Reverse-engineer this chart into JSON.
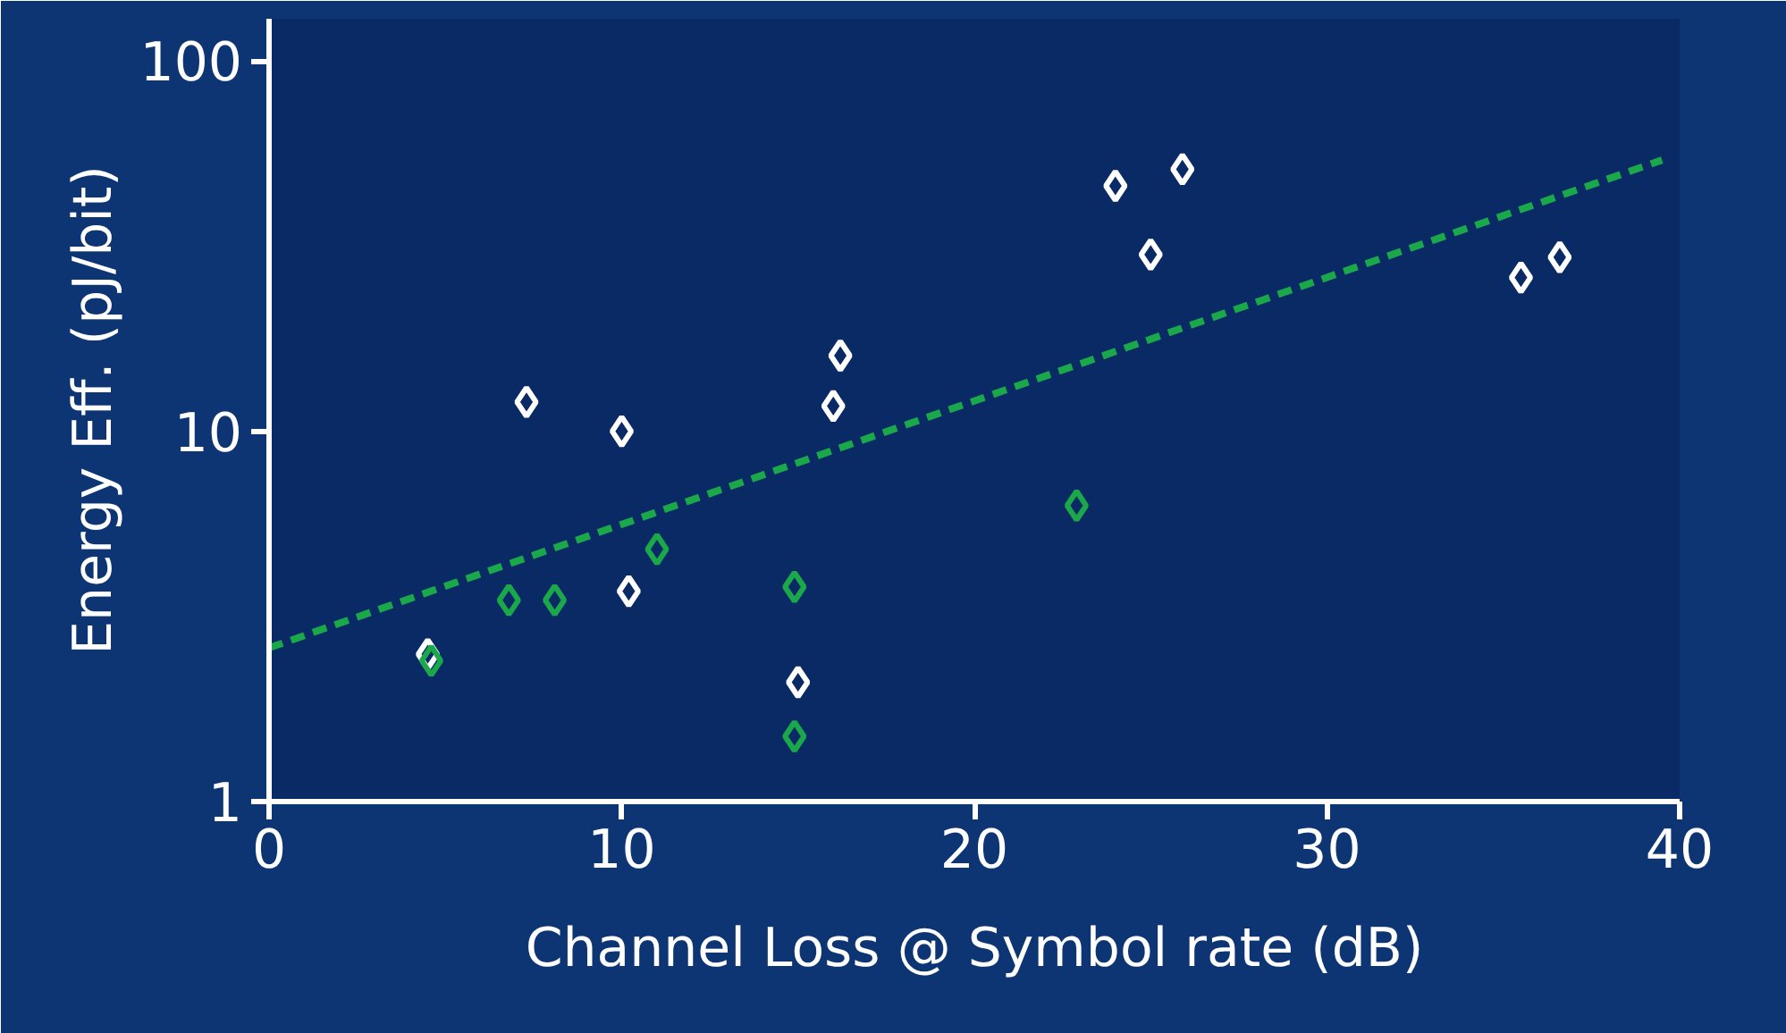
{
  "chart_data": {
    "type": "scatter",
    "xlabel": "Channel Loss @ Symbol rate (dB)",
    "ylabel": "Energy Eff. (pJ/bit)",
    "log": "y",
    "xlim": [
      0,
      40
    ],
    "ylim": [
      1,
      130
    ],
    "xticks": [
      0,
      10,
      20,
      30,
      40
    ],
    "yticks": [
      1,
      10,
      100
    ],
    "grid": false,
    "series": [
      {
        "color": "#ffffff",
        "marker": "diamond",
        "x": [
          7.3,
          10.0,
          10.2,
          4.5,
          16.0,
          16.2,
          15.0,
          24.0,
          25.9,
          25.0,
          35.5,
          36.6
        ],
        "values": [
          12,
          10,
          3.7,
          2.5,
          11.7,
          16,
          2.1,
          46,
          51,
          30,
          26,
          29.5
        ]
      },
      {
        "color": "#1aa84a",
        "marker": "diamond",
        "x": [
          4.6,
          6.8,
          8.1,
          11.0,
          14.9,
          14.9,
          22.9
        ],
        "values": [
          2.4,
          3.5,
          3.5,
          4.8,
          3.8,
          1.5,
          6.3
        ]
      },
      {
        "type": "line",
        "color": "#1aa84a",
        "line_style": "dashed",
        "x": [
          0,
          39.5
        ],
        "values": [
          2.6,
          54
        ]
      }
    ]
  }
}
